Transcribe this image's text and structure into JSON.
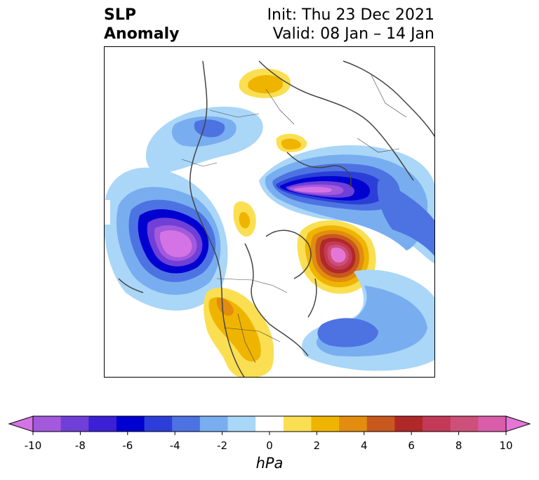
{
  "title": {
    "line1": "SLP",
    "line2": "Anomaly"
  },
  "subtitle": {
    "init": "Init: Thu 23 Dec 2021",
    "valid": "Valid: 08 Jan – 14 Jan"
  },
  "colorbar": {
    "label": "hPa",
    "ticks": [
      "-10",
      "-8",
      "-6",
      "-4",
      "-2",
      "0",
      "2",
      "4",
      "6",
      "8",
      "10"
    ],
    "colors": [
      "#d473e6",
      "#a259dc",
      "#6f3fd8",
      "#3b20d6",
      "#0000d0",
      "#2b3fd8",
      "#4d73e2",
      "#78aef0",
      "#aad6f8",
      "#ffffff",
      "#fbdf52",
      "#efb400",
      "#e28c10",
      "#c8581d",
      "#b02828",
      "#c23a57",
      "#cc5079",
      "#d95da8",
      "#e676d6"
    ]
  },
  "map": {
    "projection": "north-polar-stereographic",
    "anomalies": [
      {
        "name": "north-pacific-low",
        "sign": "negative",
        "peak_hpa": -10
      },
      {
        "name": "greenland-iceland-high",
        "sign": "positive",
        "peak_hpa": 10
      },
      {
        "name": "siberian-arctic-low",
        "sign": "negative",
        "peak_hpa": -10
      },
      {
        "name": "western-north-america-high",
        "sign": "positive",
        "peak_hpa": 4
      },
      {
        "name": "central-asia-high",
        "sign": "positive",
        "peak_hpa": 2
      },
      {
        "name": "north-atlantic-low",
        "sign": "negative",
        "peak_hpa": -4
      },
      {
        "name": "europe-low",
        "sign": "negative",
        "peak_hpa": -2
      }
    ]
  }
}
